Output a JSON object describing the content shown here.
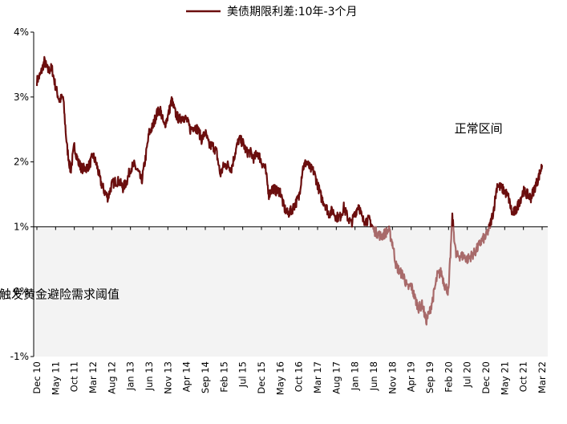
{
  "chart_data": {
    "type": "line",
    "legend": {
      "label": "美债期限利差:10年-3个月",
      "color": "#6b0e0e",
      "placement": "top-center"
    },
    "y_axis": {
      "ylim": [
        -1,
        4
      ],
      "ticks": [
        4,
        3,
        2,
        1,
        0,
        -1
      ],
      "tick_labels": [
        "4%",
        "3%",
        "2%",
        "1%",
        "0%",
        "-1%"
      ]
    },
    "x_axis": {
      "ticks": [
        "2010-12",
        "2011-05",
        "2011-10",
        "2012-03",
        "2012-08",
        "2013-01",
        "2013-06",
        "2013-11",
        "2014-04",
        "2014-09",
        "2015-02",
        "2015-07",
        "2015-12",
        "2016-05",
        "2016-10",
        "2017-03",
        "2017-08",
        "2018-01",
        "2018-06",
        "2018-11",
        "2019-04",
        "2019-09",
        "2020-02",
        "2020-07",
        "2020-12",
        "2021-05",
        "2021-10",
        "2022-03"
      ],
      "tick_labels": [
        "Dec 10",
        "May 11",
        "Oct 11",
        "Mar 12",
        "Aug 12",
        "Jan 13",
        "Jun 13",
        "Nov 13",
        "Apr 14",
        "Sep 14",
        "Feb 15",
        "Jul 15",
        "Dec 15",
        "May 16",
        "Oct 16",
        "Mar 17",
        "Aug 17",
        "Jan 18",
        "Jun 18",
        "Nov 18",
        "Apr 19",
        "Sep 19",
        "Feb 20",
        "Jul 20",
        "Dec 20",
        "May 21",
        "Oct 21",
        "Mar 22"
      ]
    },
    "threshold": {
      "value": 1,
      "shade_below": true,
      "shade_color": "#f3f3f3"
    },
    "colors": {
      "above": "#6b0e0e",
      "below": "#a86a6a"
    },
    "annotations": [
      {
        "text": "正常区间",
        "x": "2020-10",
        "y": 2.45
      },
      {
        "text": "触发黄金避险需求阈值",
        "x": "2011-06",
        "y": -0.1
      }
    ],
    "series": [
      {
        "name": "美债期限利差:10年-3个月",
        "points": [
          [
            "2010-12",
            3.25
          ],
          [
            "2011-01",
            3.35
          ],
          [
            "2011-02",
            3.55
          ],
          [
            "2011-03",
            3.4
          ],
          [
            "2011-04",
            3.45
          ],
          [
            "2011-05",
            3.15
          ],
          [
            "2011-06",
            2.95
          ],
          [
            "2011-07",
            3.0
          ],
          [
            "2011-08",
            2.25
          ],
          [
            "2011-09",
            1.85
          ],
          [
            "2011-10",
            2.25
          ],
          [
            "2011-11",
            2.0
          ],
          [
            "2011-12",
            1.9
          ],
          [
            "2012-01",
            1.9
          ],
          [
            "2012-02",
            1.95
          ],
          [
            "2012-03",
            2.1
          ],
          [
            "2012-04",
            1.95
          ],
          [
            "2012-05",
            1.7
          ],
          [
            "2012-06",
            1.55
          ],
          [
            "2012-07",
            1.45
          ],
          [
            "2012-08",
            1.65
          ],
          [
            "2012-09",
            1.7
          ],
          [
            "2012-10",
            1.7
          ],
          [
            "2012-11",
            1.6
          ],
          [
            "2012-12",
            1.7
          ],
          [
            "2013-01",
            1.9
          ],
          [
            "2013-02",
            1.95
          ],
          [
            "2013-03",
            1.85
          ],
          [
            "2013-04",
            1.7
          ],
          [
            "2013-05",
            2.05
          ],
          [
            "2013-06",
            2.45
          ],
          [
            "2013-07",
            2.55
          ],
          [
            "2013-08",
            2.75
          ],
          [
            "2013-09",
            2.8
          ],
          [
            "2013-10",
            2.55
          ],
          [
            "2013-11",
            2.7
          ],
          [
            "2013-12",
            2.95
          ],
          [
            "2014-01",
            2.75
          ],
          [
            "2014-02",
            2.65
          ],
          [
            "2014-03",
            2.7
          ],
          [
            "2014-04",
            2.65
          ],
          [
            "2014-05",
            2.5
          ],
          [
            "2014-06",
            2.55
          ],
          [
            "2014-07",
            2.5
          ],
          [
            "2014-08",
            2.35
          ],
          [
            "2014-09",
            2.45
          ],
          [
            "2014-10",
            2.25
          ],
          [
            "2014-11",
            2.25
          ],
          [
            "2014-12",
            2.15
          ],
          [
            "2015-01",
            1.8
          ],
          [
            "2015-02",
            1.95
          ],
          [
            "2015-03",
            1.95
          ],
          [
            "2015-04",
            1.9
          ],
          [
            "2015-05",
            2.15
          ],
          [
            "2015-06",
            2.35
          ],
          [
            "2015-07",
            2.3
          ],
          [
            "2015-08",
            2.15
          ],
          [
            "2015-09",
            2.15
          ],
          [
            "2015-10",
            2.05
          ],
          [
            "2015-11",
            2.15
          ],
          [
            "2015-12",
            2.0
          ],
          [
            "2016-01",
            1.9
          ],
          [
            "2016-02",
            1.5
          ],
          [
            "2016-03",
            1.6
          ],
          [
            "2016-04",
            1.55
          ],
          [
            "2016-05",
            1.55
          ],
          [
            "2016-06",
            1.3
          ],
          [
            "2016-07",
            1.2
          ],
          [
            "2016-08",
            1.25
          ],
          [
            "2016-09",
            1.35
          ],
          [
            "2016-10",
            1.45
          ],
          [
            "2016-11",
            1.9
          ],
          [
            "2016-12",
            2.0
          ],
          [
            "2017-01",
            1.9
          ],
          [
            "2017-02",
            1.85
          ],
          [
            "2017-03",
            1.65
          ],
          [
            "2017-04",
            1.45
          ],
          [
            "2017-05",
            1.35
          ],
          [
            "2017-06",
            1.2
          ],
          [
            "2017-07",
            1.25
          ],
          [
            "2017-08",
            1.15
          ],
          [
            "2017-09",
            1.15
          ],
          [
            "2017-10",
            1.3
          ],
          [
            "2017-11",
            1.15
          ],
          [
            "2017-12",
            1.05
          ],
          [
            "2018-01",
            1.2
          ],
          [
            "2018-02",
            1.35
          ],
          [
            "2018-03",
            1.1
          ],
          [
            "2018-04",
            1.1
          ],
          [
            "2018-05",
            1.1
          ],
          [
            "2018-06",
            0.95
          ],
          [
            "2018-07",
            0.9
          ],
          [
            "2018-08",
            0.85
          ],
          [
            "2018-09",
            0.9
          ],
          [
            "2018-10",
            0.95
          ],
          [
            "2018-11",
            0.75
          ],
          [
            "2018-12",
            0.4
          ],
          [
            "2019-01",
            0.3
          ],
          [
            "2019-02",
            0.25
          ],
          [
            "2019-03",
            0.05
          ],
          [
            "2019-04",
            0.1
          ],
          [
            "2019-05",
            -0.1
          ],
          [
            "2019-06",
            -0.25
          ],
          [
            "2019-07",
            -0.2
          ],
          [
            "2019-08",
            -0.45
          ],
          [
            "2019-09",
            -0.3
          ],
          [
            "2019-10",
            -0.05
          ],
          [
            "2019-11",
            0.25
          ],
          [
            "2019-12",
            0.3
          ],
          [
            "2020-01",
            0.1
          ],
          [
            "2020-02",
            0.0
          ],
          [
            "2020-03",
            1.15
          ],
          [
            "2020-04",
            0.55
          ],
          [
            "2020-05",
            0.55
          ],
          [
            "2020-06",
            0.55
          ],
          [
            "2020-07",
            0.5
          ],
          [
            "2020-08",
            0.55
          ],
          [
            "2020-09",
            0.6
          ],
          [
            "2020-10",
            0.7
          ],
          [
            "2020-11",
            0.8
          ],
          [
            "2020-12",
            0.85
          ],
          [
            "2021-01",
            1.0
          ],
          [
            "2021-02",
            1.25
          ],
          [
            "2021-03",
            1.65
          ],
          [
            "2021-04",
            1.6
          ],
          [
            "2021-05",
            1.55
          ],
          [
            "2021-06",
            1.45
          ],
          [
            "2021-07",
            1.2
          ],
          [
            "2021-08",
            1.25
          ],
          [
            "2021-09",
            1.4
          ],
          [
            "2021-10",
            1.55
          ],
          [
            "2021-11",
            1.5
          ],
          [
            "2021-12",
            1.45
          ],
          [
            "2022-01",
            1.6
          ],
          [
            "2022-02",
            1.75
          ],
          [
            "2022-03",
            1.95
          ]
        ]
      }
    ]
  }
}
